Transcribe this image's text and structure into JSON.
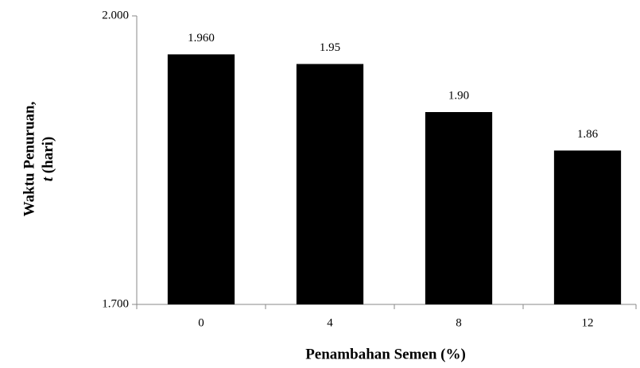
{
  "chart_data": {
    "type": "bar",
    "categories": [
      "0",
      "4",
      "8",
      "12"
    ],
    "values": [
      1.96,
      1.95,
      1.9,
      1.86
    ],
    "value_labels": [
      "1.960",
      "1.95",
      "1.90",
      "1.86"
    ],
    "color": "#000000",
    "ylim": [
      1.7,
      2.0
    ],
    "yticks": [
      {
        "value": 1.7,
        "label": "1.700"
      },
      {
        "value": 2.0,
        "label": "2.000"
      }
    ],
    "xlabel": "Penambahan Semen (%)",
    "ylabel": {
      "line1": "Waktu Penuruan,",
      "var": "t",
      "unit": "(hari)"
    },
    "grid": false
  }
}
